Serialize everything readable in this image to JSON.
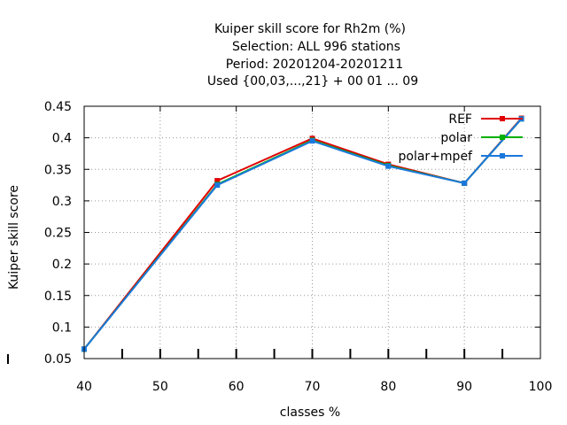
{
  "chart_data": {
    "type": "line",
    "title_lines": [
      "Kuiper skill score  for Rh2m (%)",
      "Selection: ALL    996 stations",
      "Period: 20201204-20201211",
      "Used {00,03,...,21} + 00 01 ... 09"
    ],
    "xlabel": "classes %",
    "ylabel": "Kuiper skill score",
    "xlim": [
      40,
      100
    ],
    "ylim": [
      0.05,
      0.45
    ],
    "xticks": [
      40,
      50,
      60,
      70,
      80,
      90,
      100
    ],
    "yticks": [
      0.05,
      0.1,
      0.15,
      0.2,
      0.25,
      0.3,
      0.35,
      0.4,
      0.45
    ],
    "grid": true,
    "legend_position": "top-right",
    "series": [
      {
        "name": "REF",
        "color": "#e00000",
        "x": [
          40,
          57.5,
          70,
          80,
          90,
          97.5
        ],
        "y": [
          0.065,
          0.332,
          0.399,
          0.358,
          0.328,
          0.431
        ]
      },
      {
        "name": "polar",
        "color": "#00b000",
        "x": [
          40,
          57.5,
          70,
          80,
          90,
          97.5
        ],
        "y": [
          0.065,
          0.326,
          0.396,
          0.356,
          0.328,
          0.43
        ]
      },
      {
        "name": "polar+mpef",
        "color": "#1a78dc",
        "x": [
          40,
          57.5,
          70,
          80,
          90,
          97.5
        ],
        "y": [
          0.065,
          0.325,
          0.395,
          0.355,
          0.328,
          0.43
        ]
      }
    ]
  }
}
